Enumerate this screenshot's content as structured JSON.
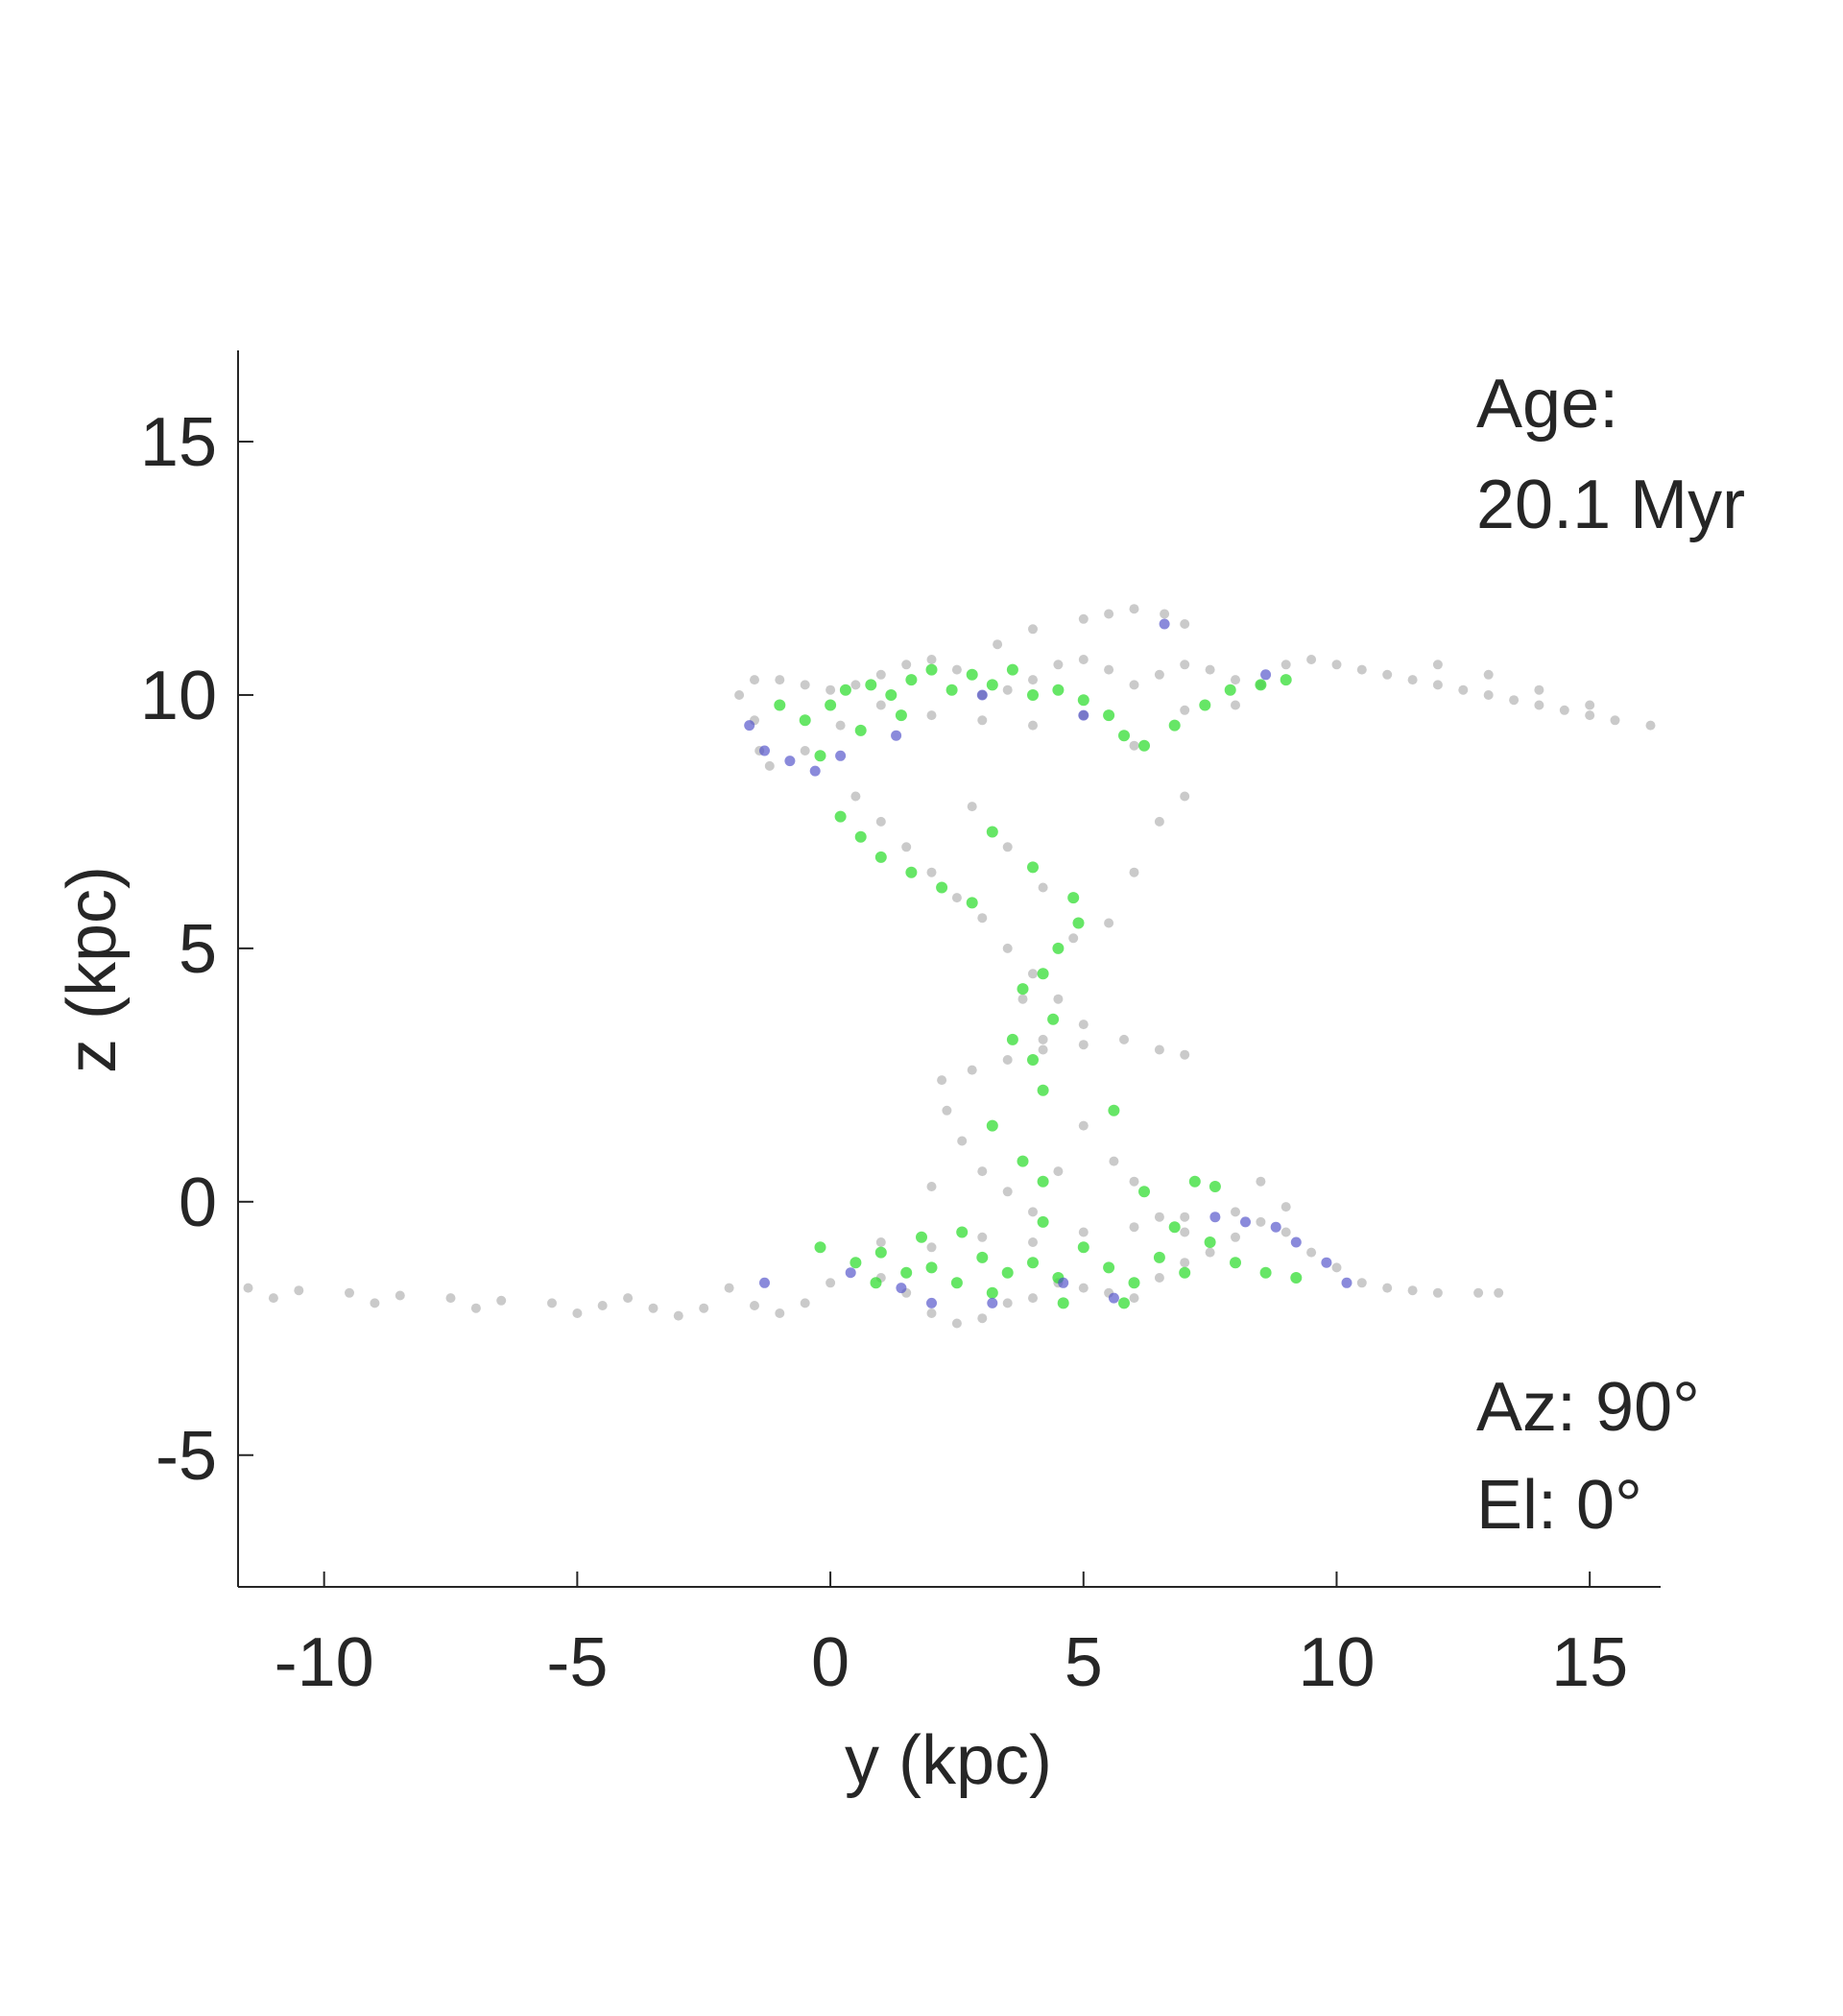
{
  "chart_data": {
    "type": "scatter",
    "xlabel": "y (kpc)",
    "ylabel": "z (kpc)",
    "xlim": [
      -11.7,
      16.4
    ],
    "ylim": [
      -7.6,
      16.8
    ],
    "xticks": [
      -10,
      -5,
      0,
      5,
      10,
      15
    ],
    "yticks": [
      -5,
      0,
      5,
      10,
      15
    ],
    "grid": false,
    "annotations": {
      "age_label": "Age:",
      "age_value": "20.1 Myr",
      "azimuth": "Az: 90°",
      "elevation": "El: 0°"
    },
    "colors": {
      "gas": "#a6a6a6",
      "young_stars": "#33dd33",
      "old_stars": "#4b4bc8",
      "axis": "#262626"
    },
    "series": [
      {
        "color_key": "gas",
        "points": [
          [
            -1.8,
            10.0
          ],
          [
            -1.5,
            10.3
          ],
          [
            -1.0,
            10.3
          ],
          [
            -0.5,
            10.2
          ],
          [
            0.0,
            10.1
          ],
          [
            0.5,
            10.2
          ],
          [
            1.0,
            10.4
          ],
          [
            1.5,
            10.6
          ],
          [
            2.0,
            10.7
          ],
          [
            2.5,
            10.5
          ],
          [
            3.0,
            10.0
          ],
          [
            3.5,
            10.1
          ],
          [
            4.0,
            10.3
          ],
          [
            4.5,
            10.6
          ],
          [
            5.0,
            10.7
          ],
          [
            5.5,
            10.5
          ],
          [
            6.0,
            10.2
          ],
          [
            6.5,
            10.4
          ],
          [
            7.0,
            10.6
          ],
          [
            7.5,
            10.5
          ],
          [
            8.0,
            10.3
          ],
          [
            8.5,
            10.2
          ],
          [
            9.0,
            10.6
          ],
          [
            9.5,
            10.7
          ],
          [
            10.0,
            10.6
          ],
          [
            10.5,
            10.5
          ],
          [
            11.0,
            10.4
          ],
          [
            11.5,
            10.3
          ],
          [
            12.0,
            10.2
          ],
          [
            12.5,
            10.1
          ],
          [
            13.0,
            10.0
          ],
          [
            13.5,
            9.9
          ],
          [
            14.0,
            9.8
          ],
          [
            14.5,
            9.7
          ],
          [
            15.0,
            9.6
          ],
          [
            15.5,
            9.5
          ],
          [
            16.2,
            9.4
          ],
          [
            12.0,
            10.6
          ],
          [
            13.0,
            10.4
          ],
          [
            14.0,
            10.1
          ],
          [
            15.0,
            9.8
          ],
          [
            -1.5,
            9.5
          ],
          [
            -1.4,
            8.9
          ],
          [
            -1.2,
            8.6
          ],
          [
            -0.5,
            8.9
          ],
          [
            0.2,
            9.4
          ],
          [
            1.0,
            9.8
          ],
          [
            2.0,
            9.6
          ],
          [
            3.0,
            9.5
          ],
          [
            4.0,
            9.4
          ],
          [
            5.0,
            9.6
          ],
          [
            6.0,
            9.0
          ],
          [
            7.0,
            9.7
          ],
          [
            8.0,
            9.8
          ],
          [
            3.3,
            11.0
          ],
          [
            4.0,
            11.3
          ],
          [
            5.0,
            11.5
          ],
          [
            5.5,
            11.6
          ],
          [
            6.0,
            11.7
          ],
          [
            6.6,
            11.6
          ],
          [
            7.0,
            11.4
          ],
          [
            0.5,
            8.0
          ],
          [
            1.0,
            7.5
          ],
          [
            1.5,
            7.0
          ],
          [
            2.0,
            6.5
          ],
          [
            2.5,
            6.0
          ],
          [
            3.0,
            5.6
          ],
          [
            3.5,
            5.0
          ],
          [
            4.0,
            4.5
          ],
          [
            4.5,
            4.0
          ],
          [
            5.0,
            3.5
          ],
          [
            5.5,
            5.5
          ],
          [
            6.0,
            6.5
          ],
          [
            6.5,
            7.5
          ],
          [
            7.0,
            8.0
          ],
          [
            2.8,
            7.8
          ],
          [
            3.5,
            7.0
          ],
          [
            4.2,
            6.2
          ],
          [
            4.8,
            5.2
          ],
          [
            3.8,
            4.0
          ],
          [
            4.2,
            3.2
          ],
          [
            2.2,
            2.4
          ],
          [
            2.8,
            2.6
          ],
          [
            3.5,
            2.8
          ],
          [
            4.2,
            3.0
          ],
          [
            5.0,
            3.1
          ],
          [
            5.8,
            3.2
          ],
          [
            6.5,
            3.0
          ],
          [
            7.0,
            2.9
          ],
          [
            2.3,
            1.8
          ],
          [
            2.6,
            1.2
          ],
          [
            3.0,
            0.6
          ],
          [
            3.5,
            0.2
          ],
          [
            4.0,
            -0.2
          ],
          [
            5.0,
            1.5
          ],
          [
            5.6,
            0.8
          ],
          [
            6.0,
            0.4
          ],
          [
            6.5,
            -0.3
          ],
          [
            7.0,
            -0.6
          ],
          [
            -11.5,
            -1.7
          ],
          [
            -10.5,
            -1.75
          ],
          [
            -9.5,
            -1.8
          ],
          [
            -8.5,
            -1.85
          ],
          [
            -7.5,
            -1.9
          ],
          [
            -6.5,
            -1.95
          ],
          [
            -5.5,
            -2.0
          ],
          [
            -4.5,
            -2.05
          ],
          [
            -3.5,
            -2.1
          ],
          [
            -2.5,
            -2.1
          ],
          [
            -1.5,
            -2.05
          ],
          [
            -0.5,
            -2.0
          ],
          [
            -11.0,
            -1.9
          ],
          [
            -9.0,
            -2.0
          ],
          [
            -7.0,
            -2.1
          ],
          [
            -5.0,
            -2.2
          ],
          [
            -3.0,
            -2.25
          ],
          [
            -1.0,
            -2.2
          ],
          [
            -4.0,
            -1.9
          ],
          [
            -2.0,
            -1.7
          ],
          [
            0.0,
            -1.6
          ],
          [
            1.0,
            -1.5
          ],
          [
            1.5,
            -1.8
          ],
          [
            2.0,
            -2.2
          ],
          [
            2.5,
            -2.4
          ],
          [
            3.0,
            -2.3
          ],
          [
            3.5,
            -2.0
          ],
          [
            4.0,
            -1.9
          ],
          [
            4.5,
            -1.6
          ],
          [
            5.0,
            -1.7
          ],
          [
            5.5,
            -1.8
          ],
          [
            6.0,
            -1.9
          ],
          [
            6.5,
            -1.5
          ],
          [
            7.0,
            -1.2
          ],
          [
            7.5,
            -1.0
          ],
          [
            8.0,
            -0.7
          ],
          [
            8.5,
            -0.4
          ],
          [
            9.0,
            -0.6
          ],
          [
            9.5,
            -1.0
          ],
          [
            10.0,
            -1.3
          ],
          [
            10.5,
            -1.6
          ],
          [
            11.0,
            -1.7
          ],
          [
            11.5,
            -1.75
          ],
          [
            12.0,
            -1.8
          ],
          [
            12.8,
            -1.8
          ],
          [
            13.2,
            -1.8
          ],
          [
            1.0,
            -0.8
          ],
          [
            2.0,
            -0.9
          ],
          [
            3.0,
            -0.7
          ],
          [
            4.0,
            -0.8
          ],
          [
            5.0,
            -0.6
          ],
          [
            6.0,
            -0.5
          ],
          [
            7.0,
            -0.3
          ],
          [
            8.0,
            -0.2
          ],
          [
            9.0,
            -0.1
          ],
          [
            2.0,
            0.3
          ],
          [
            4.5,
            0.6
          ],
          [
            8.5,
            0.4
          ]
        ]
      },
      {
        "color_key": "young_stars",
        "points": [
          [
            -1.0,
            9.8
          ],
          [
            -0.5,
            9.5
          ],
          [
            0.0,
            9.8
          ],
          [
            0.3,
            10.1
          ],
          [
            0.8,
            10.2
          ],
          [
            1.2,
            10.0
          ],
          [
            1.6,
            10.3
          ],
          [
            2.0,
            10.5
          ],
          [
            2.4,
            10.1
          ],
          [
            2.8,
            10.4
          ],
          [
            3.2,
            10.2
          ],
          [
            3.6,
            10.5
          ],
          [
            4.0,
            10.0
          ],
          [
            4.5,
            10.1
          ],
          [
            5.0,
            9.9
          ],
          [
            5.5,
            9.6
          ],
          [
            5.8,
            9.2
          ],
          [
            6.2,
            9.0
          ],
          [
            6.8,
            9.4
          ],
          [
            7.4,
            9.8
          ],
          [
            7.9,
            10.1
          ],
          [
            8.5,
            10.2
          ],
          [
            9.0,
            10.3
          ],
          [
            0.6,
            9.3
          ],
          [
            1.4,
            9.6
          ],
          [
            -0.2,
            8.8
          ],
          [
            0.2,
            7.6
          ],
          [
            0.6,
            7.2
          ],
          [
            1.0,
            6.8
          ],
          [
            1.6,
            6.5
          ],
          [
            2.2,
            6.2
          ],
          [
            2.8,
            5.9
          ],
          [
            3.2,
            7.3
          ],
          [
            4.0,
            6.6
          ],
          [
            4.8,
            6.0
          ],
          [
            4.9,
            5.5
          ],
          [
            4.5,
            5.0
          ],
          [
            4.2,
            4.5
          ],
          [
            3.8,
            4.2
          ],
          [
            4.4,
            3.6
          ],
          [
            3.6,
            3.2
          ],
          [
            4.0,
            2.8
          ],
          [
            4.2,
            2.2
          ],
          [
            3.2,
            1.5
          ],
          [
            3.8,
            0.8
          ],
          [
            4.2,
            0.4
          ],
          [
            5.6,
            1.8
          ],
          [
            6.2,
            0.2
          ],
          [
            7.2,
            0.4
          ],
          [
            -0.2,
            -0.9
          ],
          [
            0.5,
            -1.2
          ],
          [
            1.0,
            -1.0
          ],
          [
            1.5,
            -1.4
          ],
          [
            2.0,
            -1.3
          ],
          [
            2.5,
            -1.6
          ],
          [
            3.0,
            -1.1
          ],
          [
            3.5,
            -1.4
          ],
          [
            4.0,
            -1.2
          ],
          [
            4.5,
            -1.5
          ],
          [
            5.0,
            -0.9
          ],
          [
            5.5,
            -1.3
          ],
          [
            6.0,
            -1.6
          ],
          [
            6.5,
            -1.1
          ],
          [
            7.0,
            -1.4
          ],
          [
            7.5,
            -0.8
          ],
          [
            8.0,
            -1.2
          ],
          [
            8.6,
            -1.4
          ],
          [
            9.2,
            -1.5
          ],
          [
            3.2,
            -1.8
          ],
          [
            4.6,
            -2.0
          ],
          [
            5.8,
            -2.0
          ],
          [
            2.6,
            -0.6
          ],
          [
            4.2,
            -0.4
          ],
          [
            6.8,
            -0.5
          ],
          [
            7.6,
            0.3
          ],
          [
            1.8,
            -0.7
          ],
          [
            0.9,
            -1.6
          ]
        ]
      },
      {
        "color_key": "old_stars",
        "points": [
          [
            -1.6,
            9.4
          ],
          [
            -1.3,
            8.9
          ],
          [
            -0.8,
            8.7
          ],
          [
            -0.3,
            8.5
          ],
          [
            0.2,
            8.8
          ],
          [
            1.3,
            9.2
          ],
          [
            3.0,
            10.0
          ],
          [
            5.0,
            9.6
          ],
          [
            6.6,
            11.4
          ],
          [
            8.6,
            10.4
          ],
          [
            -1.3,
            -1.6
          ],
          [
            0.4,
            -1.4
          ],
          [
            1.4,
            -1.7
          ],
          [
            2.0,
            -2.0
          ],
          [
            3.2,
            -2.0
          ],
          [
            4.6,
            -1.6
          ],
          [
            5.6,
            -1.9
          ],
          [
            7.6,
            -0.3
          ],
          [
            8.2,
            -0.4
          ],
          [
            8.8,
            -0.5
          ],
          [
            9.2,
            -0.8
          ],
          [
            9.8,
            -1.2
          ],
          [
            10.2,
            -1.6
          ]
        ]
      }
    ]
  }
}
